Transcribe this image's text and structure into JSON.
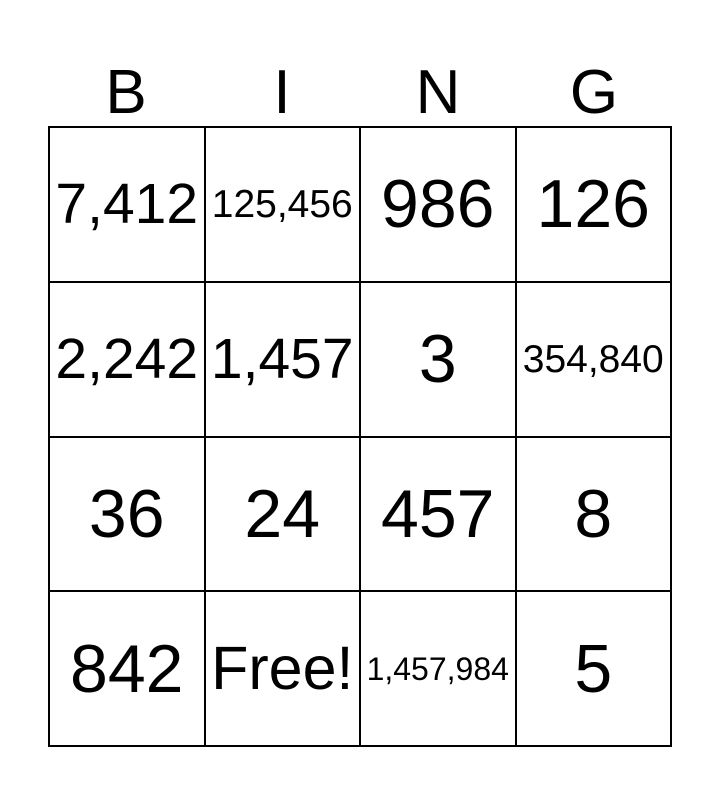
{
  "card": {
    "header_letters": [
      "B",
      "I",
      "N",
      "G"
    ],
    "rows": [
      [
        "7,412",
        "125,456",
        "986",
        "126"
      ],
      [
        "2,242",
        "1,457",
        "3",
        "354,840"
      ],
      [
        "36",
        "24",
        "457",
        "8"
      ],
      [
        "842",
        "Free!",
        "1,457,984",
        "5"
      ]
    ],
    "free_cell_label": "Free!",
    "colors": {
      "grid_line": "#000000",
      "cell_background": "#ffffff",
      "text": "#000000",
      "page_background": "#ffffff"
    }
  }
}
